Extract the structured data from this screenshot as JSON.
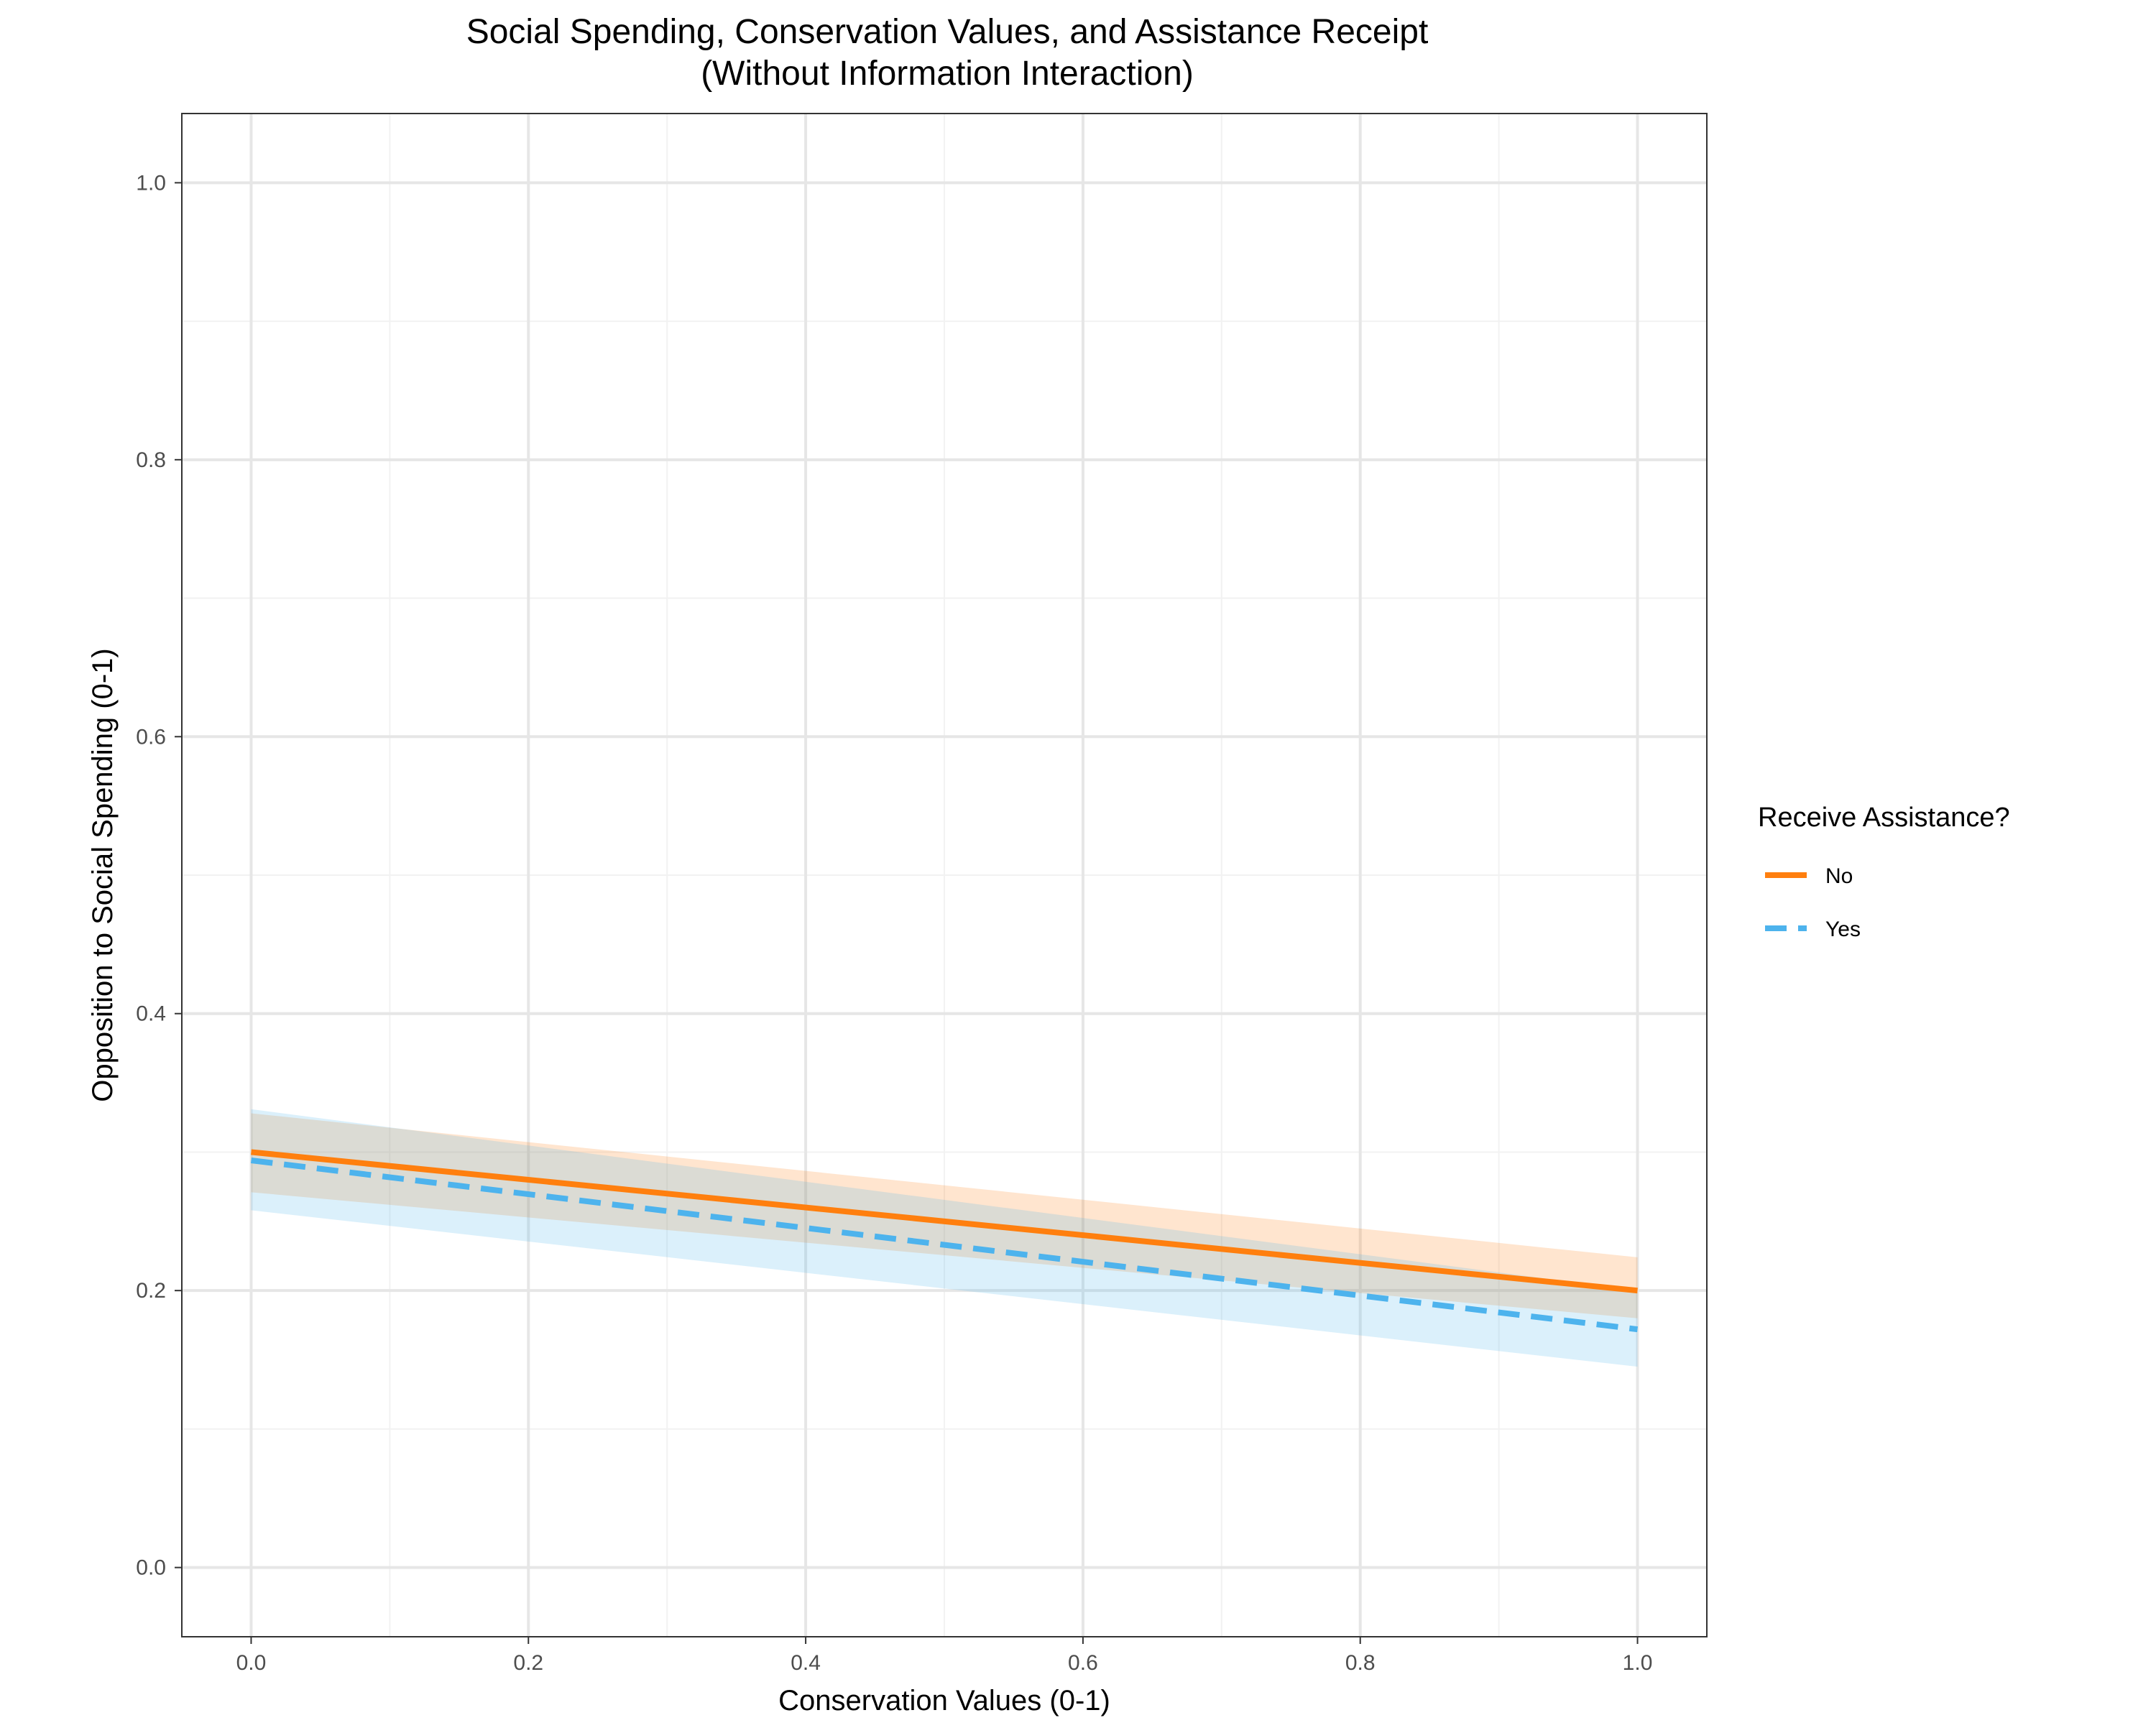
{
  "chart_data": {
    "type": "line",
    "title_lines": [
      "Social Spending, Conservation Values, and Assistance Receipt",
      "(Without Information Interaction)"
    ],
    "xlabel": "Conservation Values (0-1)",
    "ylabel": "Opposition to Social Spending (0-1)",
    "xlim": [
      -0.05,
      1.05
    ],
    "ylim": [
      -0.05,
      1.05
    ],
    "x_ticks": [
      "0.0",
      "0.2",
      "0.4",
      "0.6",
      "0.8",
      "1.0"
    ],
    "y_ticks": [
      "0.0",
      "0.2",
      "0.4",
      "0.6",
      "0.8",
      "1.0"
    ],
    "x_tick_values": [
      0.0,
      0.2,
      0.4,
      0.6,
      0.8,
      1.0
    ],
    "y_tick_values": [
      0.0,
      0.2,
      0.4,
      0.6,
      0.8,
      1.0
    ],
    "grid": true,
    "legend": {
      "title": "Receive Assistance?",
      "placement": "right"
    },
    "series": [
      {
        "name": "No",
        "color": "#ff7f0e",
        "line_style": "solid",
        "x": [
          0.0,
          1.0
        ],
        "y": [
          0.3,
          0.2
        ],
        "ci_lower": [
          0.271,
          0.18
        ],
        "ci_upper": [
          0.328,
          0.224
        ]
      },
      {
        "name": "Yes",
        "color": "#4db3ed",
        "line_style": "dashed",
        "x": [
          0.0,
          1.0
        ],
        "y": [
          0.294,
          0.172
        ],
        "ci_lower": [
          0.258,
          0.145
        ],
        "ci_upper": [
          0.331,
          0.2
        ]
      }
    ]
  }
}
